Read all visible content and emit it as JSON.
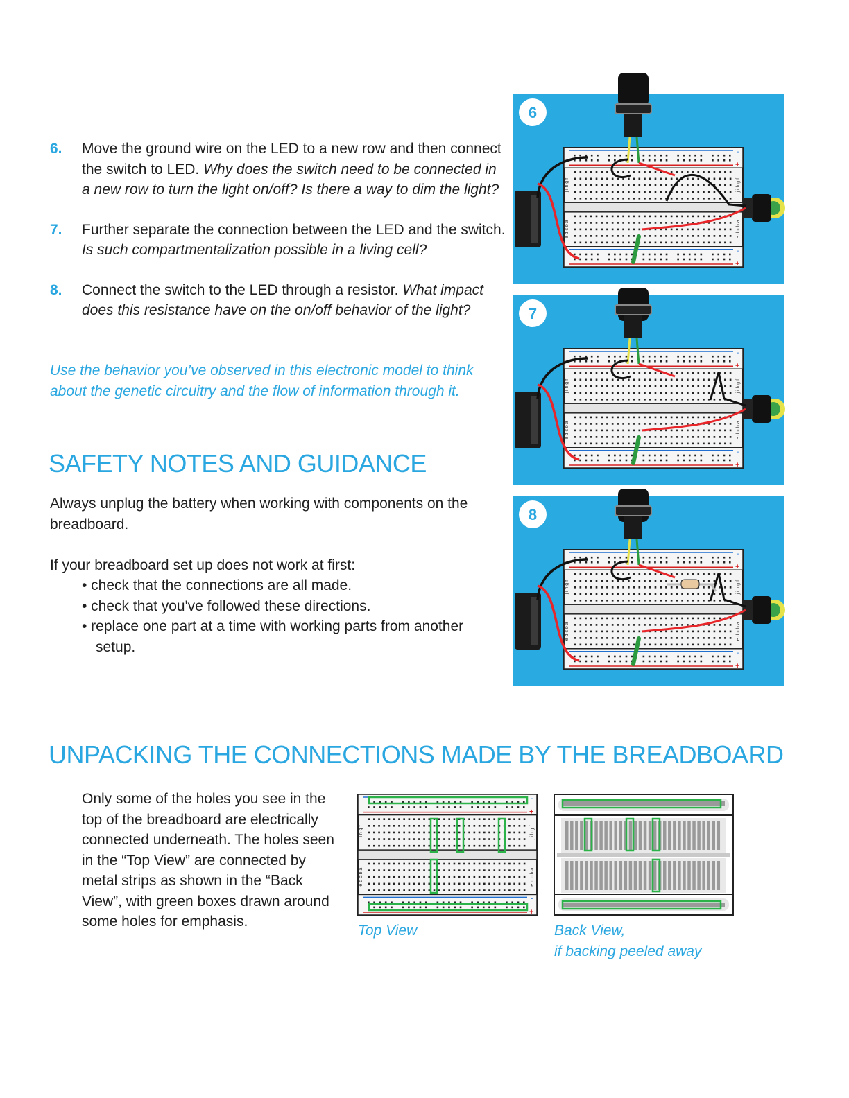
{
  "steps": [
    {
      "num": "6.",
      "plain": "Move the ground wire on the LED to a new row and then connect the switch to LED.",
      "italic": "Why does the switch need to be connected in a new row to turn the light on/off? Is there a way to dim the light?"
    },
    {
      "num": "7.",
      "plain": "Further separate the connection between the LED and the switch.",
      "italic": "Is such compartmentalization possible in a living cell?"
    },
    {
      "num": "8.",
      "plain": "Connect the switch to the LED through a resistor.",
      "italic": "What impact does this resistance have on the on/off behavior of the light?"
    }
  ],
  "callout": "Use the behavior you’ve observed in this electronic model to think about the genetic circuitry and the flow of information through it.",
  "safety": {
    "title": "SAFETY NOTES AND GUIDANCE",
    "p1": "Always unplug the battery when working with components on the breadboard.",
    "p2": "If your breadboard set up does not work at first:",
    "bullets": [
      "• check that the connections are all made.",
      "• check that you've followed these directions.",
      "• replace one part at a time with working parts from another setup."
    ]
  },
  "unpacking": {
    "title": "UNPACKING THE CONNECTIONS MADE BY THE BREADBOARD",
    "body": "Only some of the holes you see in the top of the breadboard are electrically connected underneath. The holes seen in the “Top View” are connected by metal strips as shown in the “Back View”, with green boxes drawn around some holes for emphasis.",
    "top_caption": "Top View",
    "back_caption_1": "Back View,",
    "back_caption_2": "if backing peeled away"
  },
  "panels": [
    {
      "label": "6"
    },
    {
      "label": "7"
    },
    {
      "label": "8"
    }
  ],
  "board": {
    "minus": "-",
    "plus": "+",
    "rows_top": "j i h g f",
    "rows_bottom": "e d c b a"
  },
  "colors": {
    "accent": "#2aa7e0",
    "panel_bg": "#29aae1",
    "wire_red": "#e8262a",
    "wire_black": "#111111",
    "resistor_green": "#2c9a3e",
    "led_yellow": "#e6e34a",
    "highlight_green": "#2bb34a"
  }
}
